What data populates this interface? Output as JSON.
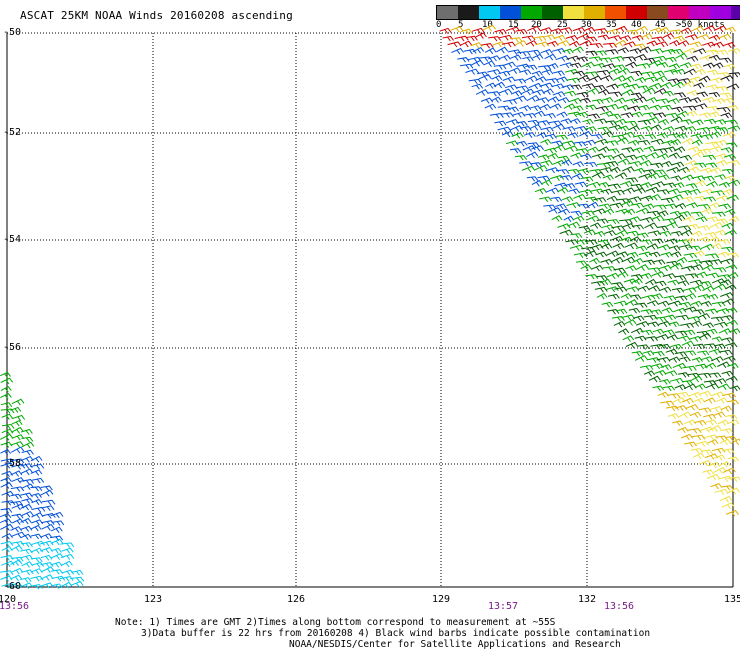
{
  "header": {
    "title": "ASCAT 25KM NOAA Winds 20160208 ascending"
  },
  "legend": {
    "colors": [
      "#6e6e6e",
      "#1a1a1a",
      "#00c8f0",
      "#0050d8",
      "#00a800",
      "#006000",
      "#f0e040",
      "#e0b000",
      "#f05000",
      "#d00000",
      "#8a4a20",
      "#e00070",
      "#c000c0",
      "#a000e0",
      "#5a00a8"
    ],
    "labels": [
      "0",
      "5",
      "10",
      "15",
      "20",
      "25",
      "30",
      "35",
      "40",
      "45",
      ">50 knots"
    ]
  },
  "map": {
    "lat_labels": [
      "-50",
      "-52",
      "-54",
      "-56",
      "-58",
      "-60"
    ],
    "lon_labels": [
      "120",
      "123",
      "126",
      "129",
      "132",
      "135"
    ],
    "time_labels": [
      "13:56",
      "13:57",
      "13:56"
    ]
  },
  "footer": {
    "note_line1": "Note: 1) Times are GMT 2)Times along bottom correspond to measurement at ~55S",
    "note_line2": "3)Data buffer is 22 hrs from 20160208 4) Black wind barbs indicate possible contamination",
    "note_line3": "NOAA/NESDIS/Center for Satellite Applications and Research"
  }
}
